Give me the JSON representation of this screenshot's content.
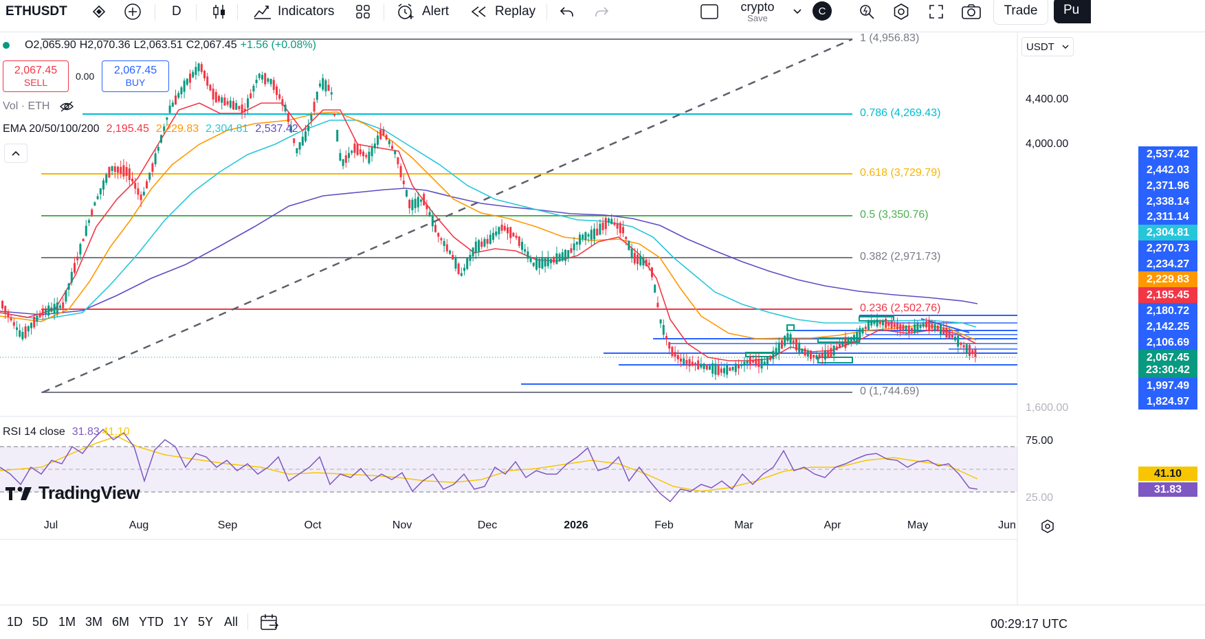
{
  "toolbar": {
    "symbol": "ETHUSDT",
    "interval": "D",
    "indicators_label": "Indicators",
    "alert_label": "Alert",
    "replay_label": "Replay",
    "layout_name": "crypto",
    "layout_save": "Save",
    "avatar_letter": "C",
    "trade_label": "Trade",
    "publish_label": "Pu"
  },
  "legend": {
    "ohlc_o": "O2,065.90",
    "ohlc_h": "H2,070.36",
    "ohlc_l": "L2,063.51",
    "ohlc_c": "C2,067.45",
    "ohlc_change": "+1.56 (+0.08%)",
    "sell_price": "2,067.45",
    "sell_label": "SELL",
    "spread": "0.00",
    "buy_price": "2,067.45",
    "buy_label": "BUY",
    "vol_label": "Vol · ETH",
    "ema_label": "EMA 20/50/100/200",
    "ema20": "2,195.45",
    "ema50": "2,229.83",
    "ema100": "2,304.81",
    "ema200": "2,537.42",
    "rsi_label": "RSI 14 close",
    "rsi_value": "31.83",
    "rsi_ma": "41.10"
  },
  "currency": "USDT",
  "fib_levels": [
    {
      "label": "1 (4,956.83)",
      "color": "#787b86"
    },
    {
      "label": "0.786 (4,269.43)",
      "color": "#00bcd4"
    },
    {
      "label": "0.618 (3,729.79)",
      "color": "#f7b500"
    },
    {
      "label": "0.5 (3,350.76)",
      "color": "#4caf50"
    },
    {
      "label": "0.382 (2,971.73)",
      "color": "#787b86"
    },
    {
      "label": "0.236 (2,502.76)",
      "color": "#f23645"
    },
    {
      "label": "0 (1,744.69)",
      "color": "#787b86"
    }
  ],
  "price_axis": [
    "4,400.00",
    "4,000.00",
    "1,600.00"
  ],
  "price_tags": [
    {
      "value": "2,537.42",
      "color": "#2962ff"
    },
    {
      "value": "2,442.03",
      "color": "#2962ff"
    },
    {
      "value": "2,371.96",
      "color": "#2962ff"
    },
    {
      "value": "2,338.14",
      "color": "#2962ff"
    },
    {
      "value": "2,311.14",
      "color": "#2962ff"
    },
    {
      "value": "2,304.81",
      "color": "#26c6da"
    },
    {
      "value": "2,270.73",
      "color": "#2962ff"
    },
    {
      "value": "2,234.27",
      "color": "#2962ff"
    },
    {
      "value": "2,229.83",
      "color": "#ff9800"
    },
    {
      "value": "2,195.45",
      "color": "#f23645"
    },
    {
      "value": "2,180.72",
      "color": "#2962ff"
    },
    {
      "value": "2,142.25",
      "color": "#2962ff"
    },
    {
      "value": "2,106.69",
      "color": "#2962ff"
    },
    {
      "value": "2,067.45",
      "color": "#089981"
    },
    {
      "value": "23:30:42",
      "color": "#089981"
    },
    {
      "value": "1,997.49",
      "color": "#2962ff"
    },
    {
      "value": "1,824.97",
      "color": "#2962ff"
    }
  ],
  "rsi_axis": [
    "75.00",
    "25.00"
  ],
  "rsi_tags": [
    {
      "value": "41.10",
      "color": "#f7c600",
      "text": "#131722"
    },
    {
      "value": "31.83",
      "color": "#7e57c2",
      "text": "#ffffff"
    }
  ],
  "time_axis": [
    "Jul",
    "Aug",
    "Sep",
    "Oct",
    "Nov",
    "Dec",
    "2026",
    "Feb",
    "Mar",
    "Apr",
    "May",
    "Jun"
  ],
  "ranges": [
    "1D",
    "5D",
    "1M",
    "3M",
    "6M",
    "YTD",
    "1Y",
    "5Y",
    "All"
  ],
  "clock": "00:29:17 UTC",
  "brand": "TradingView",
  "colors": {
    "up": "#089981",
    "down": "#f23645",
    "ema20": "#f23645",
    "ema50": "#ff9800",
    "ema100": "#26c6da",
    "ema200": "#5b4cc4",
    "rsi": "#7e57c2",
    "rsi_ma": "#f7c600"
  }
}
